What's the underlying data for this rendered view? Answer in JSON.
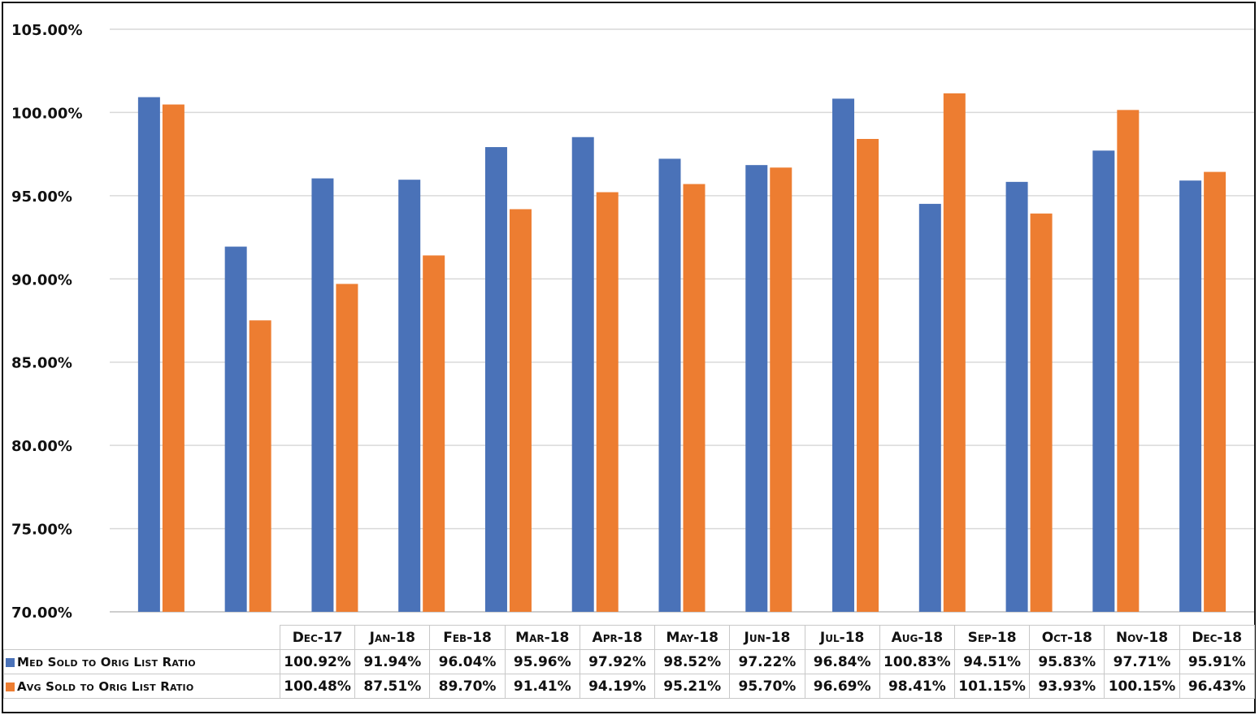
{
  "chart_data": {
    "type": "bar",
    "categories": [
      "Dec-17",
      "Jan-18",
      "Feb-18",
      "Mar-18",
      "Apr-18",
      "May-18",
      "Jun-18",
      "Jul-18",
      "Aug-18",
      "Sep-18",
      "Oct-18",
      "Nov-18",
      "Dec-18"
    ],
    "series": [
      {
        "name": "Med Sold to Orig List Ratio",
        "color": "#4a72b8",
        "values": [
          100.92,
          91.94,
          96.04,
          95.96,
          97.92,
          98.52,
          97.22,
          96.84,
          100.83,
          94.51,
          95.83,
          97.71,
          95.91
        ],
        "labels": [
          "100.92%",
          "91.94%",
          "96.04%",
          "95.96%",
          "97.92%",
          "98.52%",
          "97.22%",
          "96.84%",
          "100.83%",
          "94.51%",
          "95.83%",
          "97.71%",
          "95.91%"
        ]
      },
      {
        "name": "Avg Sold to Orig List Ratio",
        "color": "#ed7d31",
        "values": [
          100.48,
          87.51,
          89.7,
          91.41,
          94.19,
          95.21,
          95.7,
          96.69,
          98.41,
          101.15,
          93.93,
          100.15,
          96.43
        ],
        "labels": [
          "100.48%",
          "87.51%",
          "89.70%",
          "91.41%",
          "94.19%",
          "95.21%",
          "95.70%",
          "96.69%",
          "98.41%",
          "101.15%",
          "93.93%",
          "100.15%",
          "96.43%"
        ]
      }
    ],
    "ylim": [
      70,
      105
    ],
    "yticks": [
      "70.00%",
      "75.00%",
      "80.00%",
      "85.00%",
      "90.00%",
      "95.00%",
      "100.00%",
      "105.00%"
    ],
    "ytick_values": [
      70,
      75,
      80,
      85,
      90,
      95,
      100,
      105
    ],
    "grid": true,
    "legend": "data-table",
    "title": "",
    "xlabel": "",
    "ylabel": ""
  }
}
